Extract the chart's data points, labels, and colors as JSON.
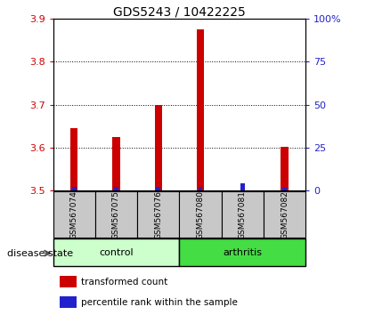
{
  "title": "GDS5243 / 10422225",
  "samples": [
    "GSM567074",
    "GSM567075",
    "GSM567076",
    "GSM567080",
    "GSM567081",
    "GSM567082"
  ],
  "red_values": [
    3.645,
    3.625,
    3.7,
    3.875,
    3.5,
    3.602
  ],
  "blue_values": [
    3.508,
    3.508,
    3.508,
    3.508,
    3.516,
    3.506
  ],
  "base": 3.5,
  "ylim_left": [
    3.5,
    3.9
  ],
  "ylim_right": [
    0,
    100
  ],
  "yticks_left": [
    3.5,
    3.6,
    3.7,
    3.8,
    3.9
  ],
  "yticks_right": [
    0,
    25,
    50,
    75,
    100
  ],
  "ytick_labels_right": [
    "0",
    "25",
    "50",
    "75",
    "100%"
  ],
  "red_color": "#cc0000",
  "blue_color": "#2222cc",
  "control_color": "#ccffcc",
  "arthritis_color": "#44dd44",
  "control_label": "control",
  "arthritis_label": "arthritis",
  "legend_red": "transformed count",
  "legend_blue": "percentile rank within the sample",
  "disease_state_label": "disease state",
  "red_bar_width": 0.18,
  "blue_bar_width": 0.1,
  "label_area_bg": "#c8c8c8",
  "tick_color_left": "#cc0000",
  "tick_color_right": "#2222cc"
}
